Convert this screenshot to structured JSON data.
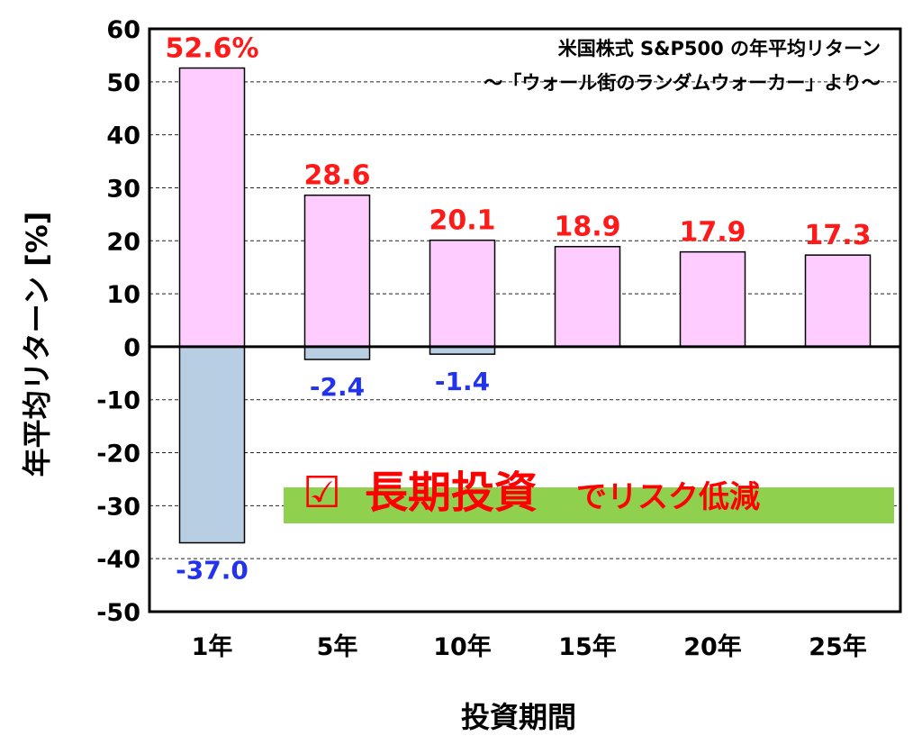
{
  "chart_data": {
    "type": "bar",
    "title_lines": [
      "米国株式 S&P500 の年平均リターン",
      "～「ウォール街のランダムウォーカー」より～"
    ],
    "xlabel": "投資期間",
    "ylabel": "年平均リターン [%]",
    "ylim": [
      -50,
      60
    ],
    "yticks": [
      60,
      50,
      40,
      30,
      20,
      10,
      0,
      -10,
      -20,
      -30,
      -40,
      -50
    ],
    "grid": true,
    "categories": [
      "1年",
      "5年",
      "10年",
      "15年",
      "20年",
      "25年"
    ],
    "series": [
      {
        "values": [
          52.6,
          28.6,
          20.1,
          18.9,
          17.9,
          17.3
        ],
        "labels": [
          "52.6%",
          "28.6",
          "20.1",
          "18.9",
          "17.9",
          "17.3"
        ],
        "color": "#ffccff"
      },
      {
        "values": [
          -37.0,
          -2.4,
          -1.4,
          0,
          0,
          0
        ],
        "labels": [
          "-37.0",
          "-2.4",
          "-1.4",
          "",
          "",
          ""
        ],
        "color": "#b8cfe3"
      }
    ],
    "annotation": {
      "checkbox": "☑",
      "main": "長期投資",
      "rest": "でリスク低減",
      "highlight_color": "#8fd14f"
    }
  }
}
